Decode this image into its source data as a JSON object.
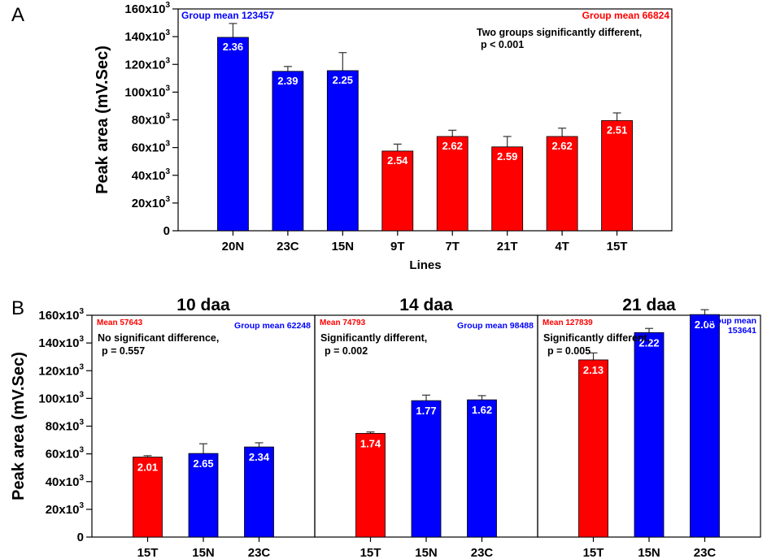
{
  "colors": {
    "group1": "#ff0000",
    "group2": "#0000ff",
    "frame": "#000000"
  },
  "chart_data": [
    {
      "panel": "A",
      "type": "bar",
      "ylabel": "Peak area (mV.Sec)",
      "xlabel": "Lines",
      "ylim": [
        0,
        160000
      ],
      "yticks": [
        0,
        20000,
        40000,
        60000,
        80000,
        100000,
        120000,
        140000,
        160000
      ],
      "ytick_labels": [
        "0",
        "20x10",
        "40x10",
        "60x10",
        "80x10",
        "100x10",
        "120x10",
        "140x10",
        "160x10"
      ],
      "ytick_exponent": "3",
      "categories": [
        "20N",
        "23C",
        "15N",
        "9T",
        "7T",
        "21T",
        "4T",
        "15T"
      ],
      "values": [
        139500,
        115000,
        115500,
        57500,
        68000,
        60500,
        68000,
        79500
      ],
      "errors": [
        10000,
        3500,
        13000,
        5000,
        4500,
        7500,
        6000,
        5500
      ],
      "bar_labels": [
        "2.36",
        "2.39",
        "2.25",
        "2.54",
        "2.62",
        "2.59",
        "2.62",
        "2.51"
      ],
      "bar_colors": [
        "#0000ff",
        "#0000ff",
        "#0000ff",
        "#ff0000",
        "#ff0000",
        "#ff0000",
        "#ff0000",
        "#ff0000"
      ],
      "annotations": {
        "mean_left": "Group mean 123457",
        "mean_right": "Group mean 66824",
        "note_line1": "Two groups significantly different,",
        "note_line2": "p < 0.001"
      }
    },
    {
      "panel": "B",
      "type": "bar",
      "ylabel": "Peak area (mV.Sec)",
      "ylim": [
        0,
        160000
      ],
      "yticks": [
        0,
        20000,
        40000,
        60000,
        80000,
        100000,
        120000,
        140000,
        160000
      ],
      "ytick_labels": [
        "0",
        "20x10",
        "40x10",
        "60x10",
        "80x10",
        "100x10",
        "120x10",
        "140x10",
        "160x10"
      ],
      "ytick_exponent": "3",
      "subpanels": [
        {
          "title": "10 daa",
          "categories": [
            "15T",
            "15N",
            "23C"
          ],
          "values": [
            57700,
            60300,
            65000
          ],
          "errors": [
            1000,
            7000,
            3000
          ],
          "bar_labels": [
            "2.01",
            "2.65",
            "2.34"
          ],
          "bar_colors": [
            "#ff0000",
            "#0000ff",
            "#0000ff"
          ],
          "mean_left": "Mean 57643",
          "mean_right": "Group mean 62248",
          "note_line1": "No significant difference,",
          "note_line2": "p = 0.557"
        },
        {
          "title": "14 daa",
          "categories": [
            "15T",
            "15N",
            "23C"
          ],
          "values": [
            74800,
            98400,
            99000
          ],
          "errors": [
            1000,
            4000,
            3000
          ],
          "bar_labels": [
            "1.74",
            "1.77",
            "1.62"
          ],
          "bar_colors": [
            "#ff0000",
            "#0000ff",
            "#0000ff"
          ],
          "mean_left": "Mean 74793",
          "mean_right": "Group mean 98488",
          "note_line1": "Significantly different,",
          "note_line2": "p = 0.002"
        },
        {
          "title": "21 daa",
          "categories": [
            "15T",
            "15N",
            "23C"
          ],
          "values": [
            127800,
            147500,
            160500
          ],
          "errors": [
            5000,
            3000,
            3500
          ],
          "bar_labels": [
            "2.13",
            "2.22",
            "2.08"
          ],
          "bar_colors": [
            "#ff0000",
            "#0000ff",
            "#0000ff"
          ],
          "mean_left": "Mean 127839",
          "mean_right_line1": "Group mean",
          "mean_right_line2": "153641",
          "note_line1": "Significantly different,",
          "note_line2": "p = 0.005"
        }
      ]
    }
  ]
}
